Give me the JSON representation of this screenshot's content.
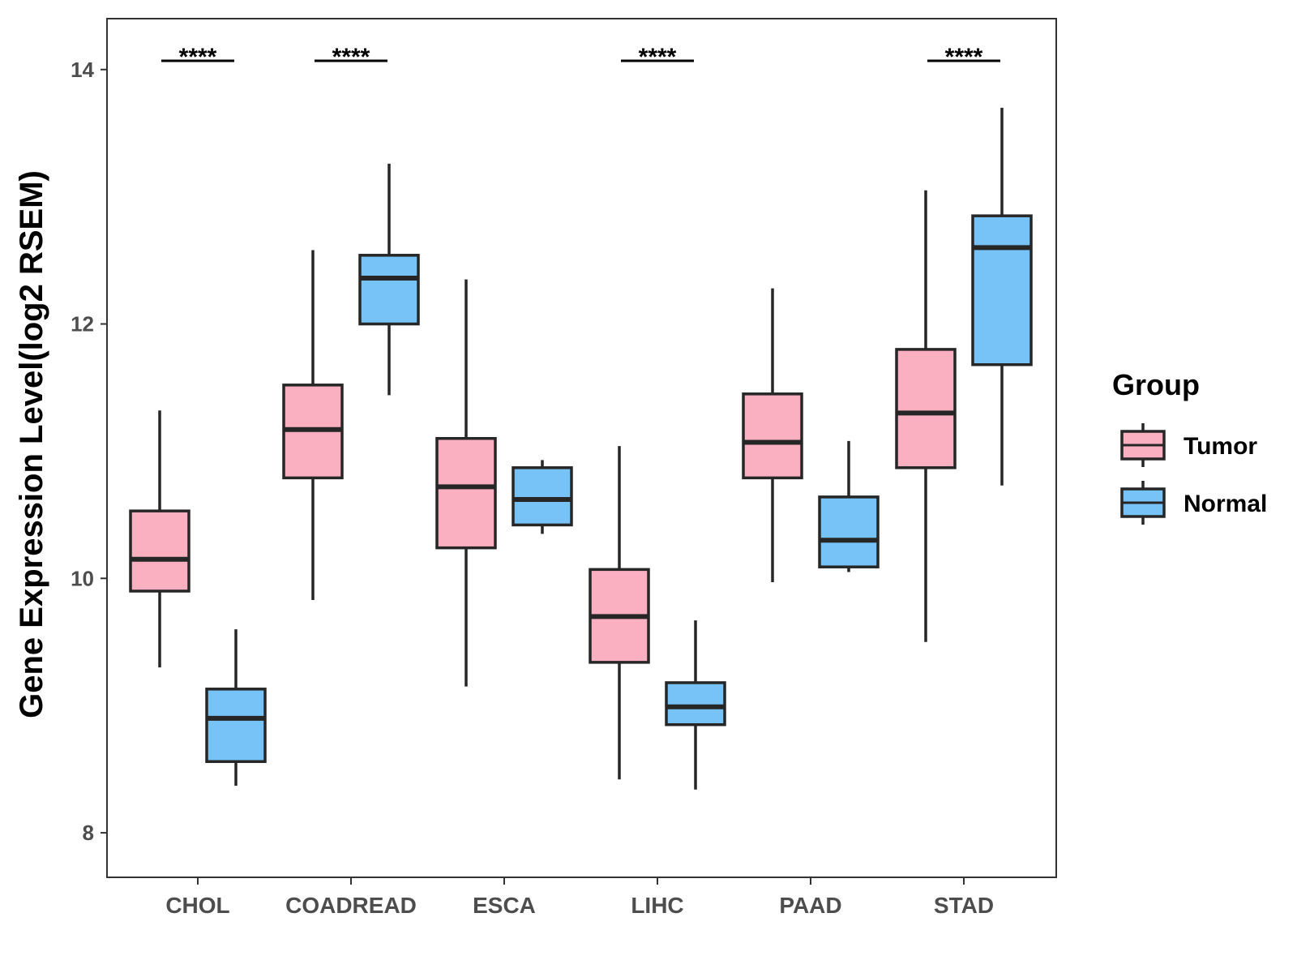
{
  "chart_data": {
    "type": "boxplot",
    "title": "",
    "xlabel": "",
    "ylabel": "Gene Expression Level(log2 RSEM)",
    "ylim": [
      7.65,
      14.4
    ],
    "yticks": [
      8,
      10,
      12,
      14
    ],
    "categories": [
      "CHOL",
      "COADREAD",
      "ESCA",
      "LIHC",
      "PAAD",
      "STAD"
    ],
    "series": [
      {
        "name": "Tumor",
        "color": "#FBB0C2",
        "boxes": [
          {
            "whisker_low": 9.3,
            "q1": 9.9,
            "median": 10.15,
            "q3": 10.53,
            "whisker_high": 11.32
          },
          {
            "whisker_low": 9.83,
            "q1": 10.79,
            "median": 11.17,
            "q3": 11.52,
            "whisker_high": 12.58
          },
          {
            "whisker_low": 9.15,
            "q1": 10.24,
            "median": 10.72,
            "q3": 11.1,
            "whisker_high": 12.35
          },
          {
            "whisker_low": 8.42,
            "q1": 9.34,
            "median": 9.7,
            "q3": 10.07,
            "whisker_high": 11.04
          },
          {
            "whisker_low": 9.97,
            "q1": 10.79,
            "median": 11.07,
            "q3": 11.45,
            "whisker_high": 12.28
          },
          {
            "whisker_low": 9.5,
            "q1": 10.87,
            "median": 11.3,
            "q3": 11.8,
            "whisker_high": 13.05
          }
        ]
      },
      {
        "name": "Normal",
        "color": "#77C3F7",
        "boxes": [
          {
            "whisker_low": 8.37,
            "q1": 8.56,
            "median": 8.9,
            "q3": 9.13,
            "whisker_high": 9.6
          },
          {
            "whisker_low": 11.44,
            "q1": 12.0,
            "median": 12.36,
            "q3": 12.54,
            "whisker_high": 13.26
          },
          {
            "whisker_low": 10.35,
            "q1": 10.42,
            "median": 10.62,
            "q3": 10.87,
            "whisker_high": 10.93
          },
          {
            "whisker_low": 8.34,
            "q1": 8.85,
            "median": 8.99,
            "q3": 9.18,
            "whisker_high": 9.67
          },
          {
            "whisker_low": 10.05,
            "q1": 10.09,
            "median": 10.3,
            "q3": 10.64,
            "whisker_high": 11.08
          },
          {
            "whisker_low": 10.73,
            "q1": 11.68,
            "median": 12.6,
            "q3": 12.85,
            "whisker_high": 13.7
          }
        ]
      }
    ],
    "significance": [
      {
        "category": "CHOL",
        "label": "****"
      },
      {
        "category": "COADREAD",
        "label": "****"
      },
      {
        "category": "LIHC",
        "label": "****"
      },
      {
        "category": "STAD",
        "label": "****"
      }
    ],
    "legend": {
      "title": "Group",
      "position": "right"
    },
    "grid": false
  }
}
